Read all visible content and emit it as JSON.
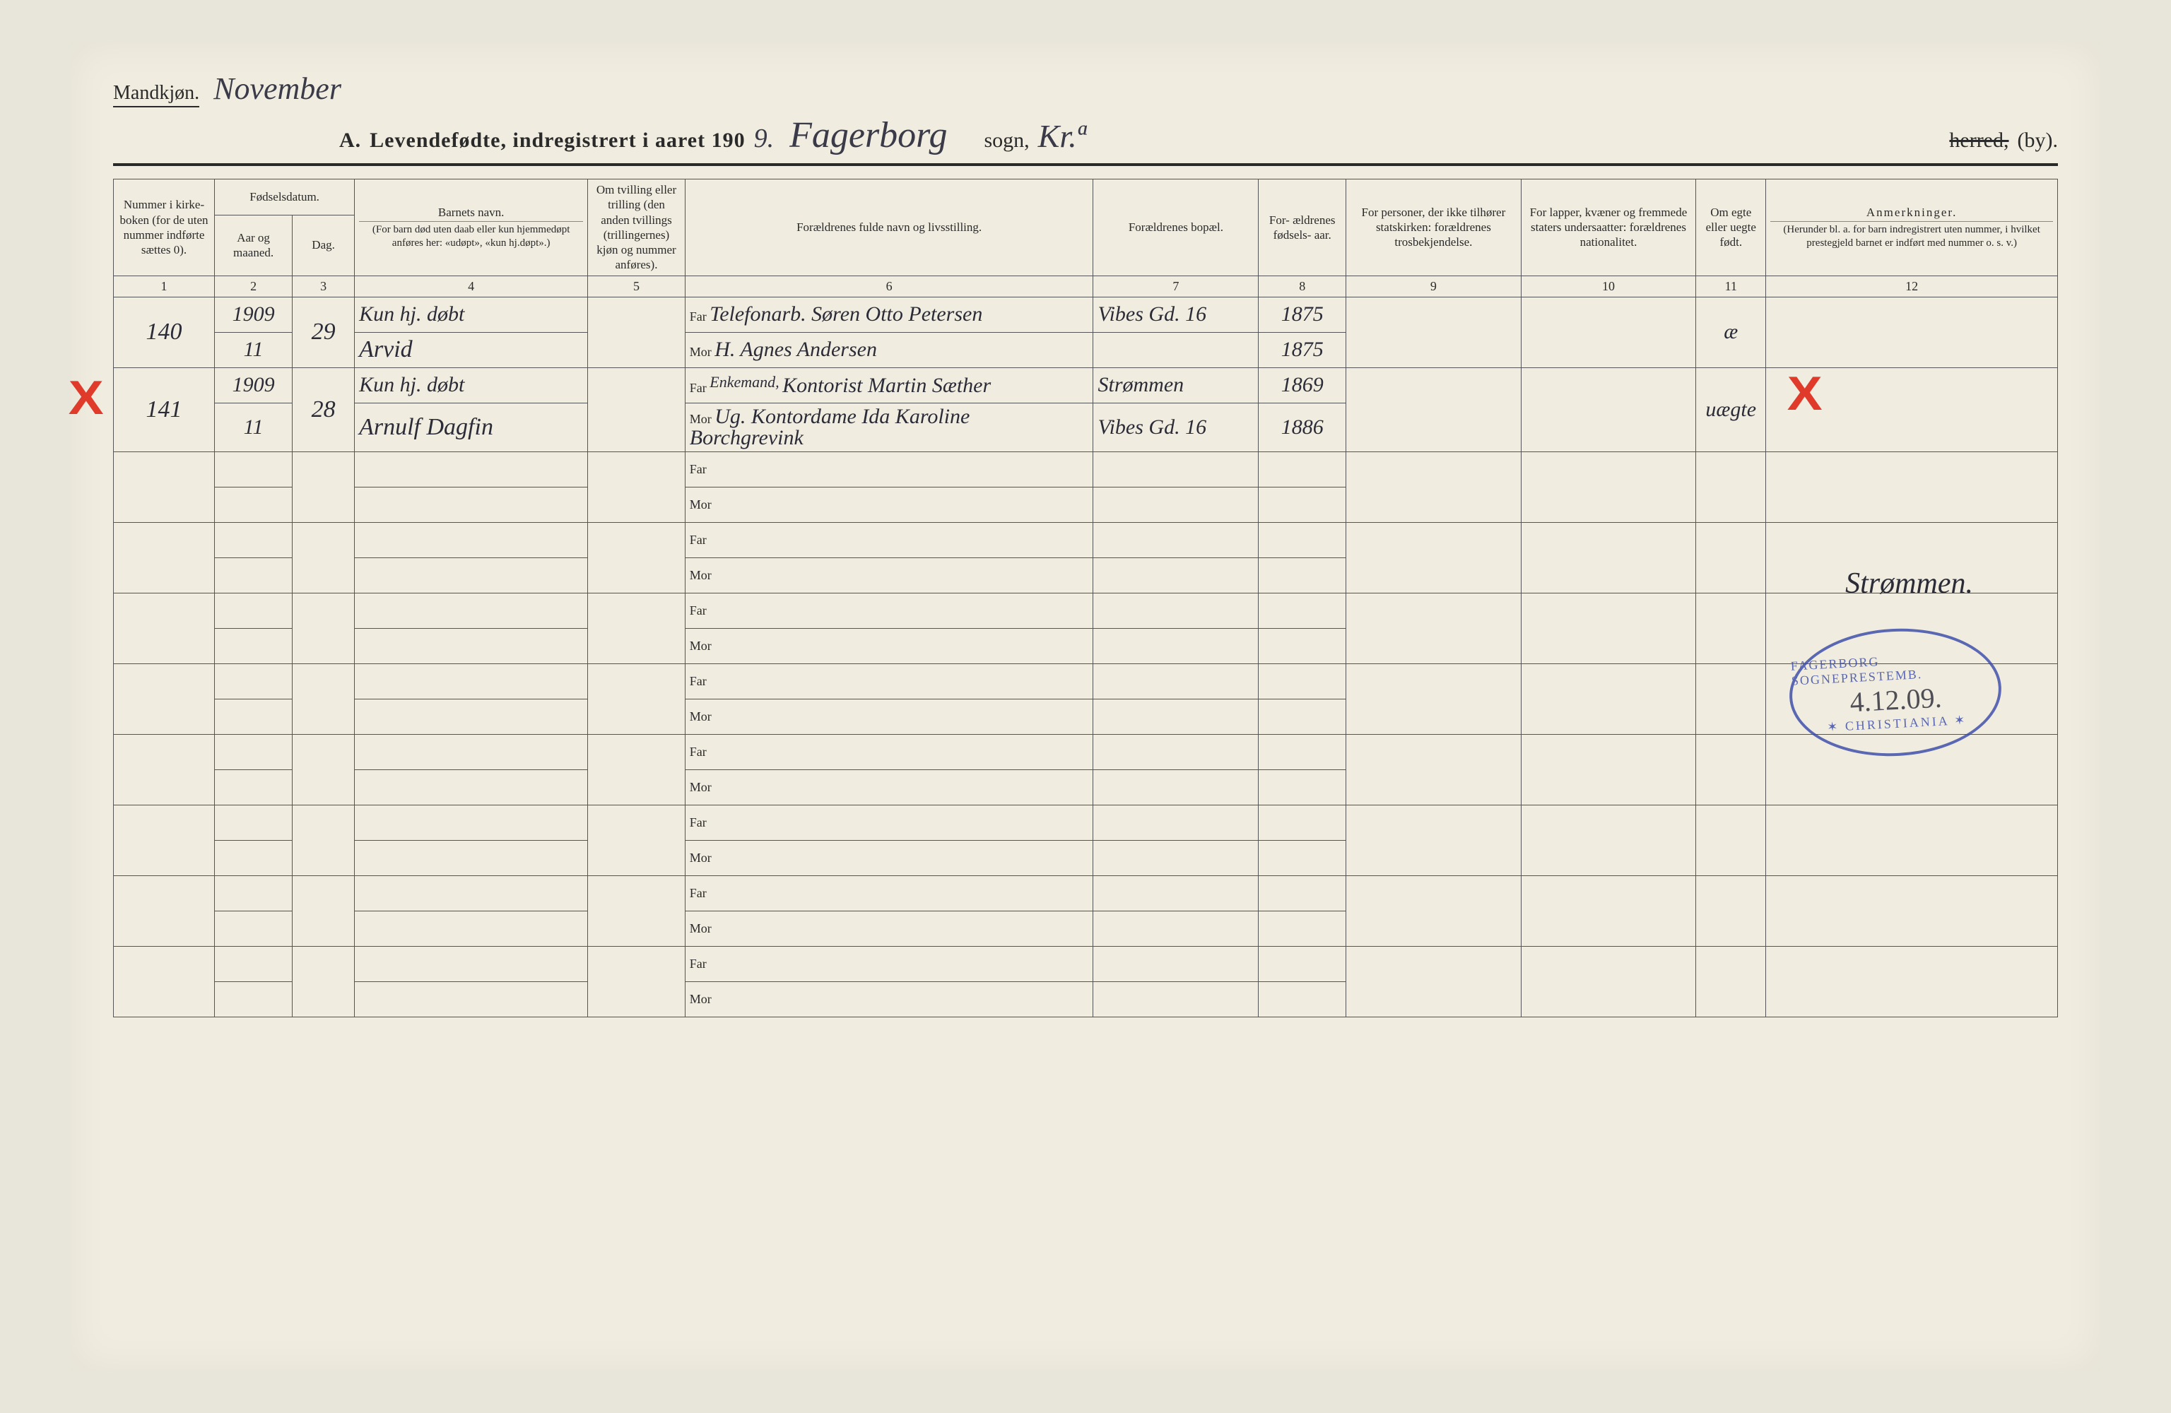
{
  "page": {
    "background_color": "#f0ede0",
    "ink_color": "#2a2a2a",
    "handwriting_color": "#2c2c38",
    "red_mark_color": "#e03a2a",
    "stamp_color": "#3a4aa8"
  },
  "header": {
    "gender_label": "Mandkjøn.",
    "month_handwritten": "November",
    "section_letter": "A.",
    "title_printed": "Levendefødte, indregistrert i aaret 190",
    "year_digit_handwritten": "9.",
    "parish_handwritten": "Fagerborg",
    "parish_label": "sogn,",
    "district_handwritten": "Kr.ª",
    "herred_struck": "herred,",
    "by_label": "(by)."
  },
  "columns": {
    "c1": "Nummer i kirke- boken (for de uten nummer indførte sættes 0).",
    "c2_group": "Fødselsdatum.",
    "c2a": "Aar og maaned.",
    "c2b": "Dag.",
    "c4": "Barnets navn.",
    "c4_sub": "(For barn død uten daab eller kun hjemmedøpt anføres her: «udøpt», «kun hj.døpt».)",
    "c5": "Om tvilling eller trilling (den anden tvillings (trillingernes) kjøn og nummer anføres).",
    "c6": "Forældrenes fulde navn og livsstilling.",
    "c7": "Forældrenes bopæl.",
    "c8": "For- ældrenes fødsels- aar.",
    "c9": "For personer, der ikke tilhører statskirken: forældrenes trosbekjendelse.",
    "c10": "For lapper, kvæner og fremmede staters undersaatter: forældrenes nationalitet.",
    "c11": "Om egte eller uegte født.",
    "c12": "Anmerkninger.",
    "c12_sub": "(Herunder bl. a. for barn indregistrert uten nummer, i hvilket prestegjeld barnet er indført med nummer o. s. v.)",
    "numbers": [
      "1",
      "2",
      "3",
      "4",
      "5",
      "6",
      "7",
      "8",
      "9",
      "10",
      "11",
      "12"
    ],
    "far_label": "Far",
    "mor_label": "Mor"
  },
  "rows": [
    {
      "num": "140",
      "year": "1909",
      "month": "11",
      "day": "29",
      "name_line1": "Kun hj. døbt",
      "name_line2": "Arvid",
      "far": "Telefonarb. Søren Otto Petersen",
      "mor": "H. Agnes Andersen",
      "far_prefix": "",
      "bopel_far": "Vibes Gd. 16",
      "bopel_mor": "",
      "aar_far": "1875",
      "aar_mor": "1875",
      "c9": "",
      "c10": "",
      "egte": "æ",
      "anm": "",
      "red_left": false,
      "red_right": false
    },
    {
      "num": "141",
      "year": "1909",
      "month": "11",
      "day": "28",
      "name_line1": "Kun hj. døbt",
      "name_line2": "Arnulf Dagfin",
      "far_prefix": "Enkemand,",
      "far": "Kontorist Martin Sæther",
      "mor": "Ug. Kontordame Ida Karoline Borchgrevink",
      "bopel_far": "Strømmen",
      "bopel_mor": "Vibes Gd. 16",
      "aar_far": "1869",
      "aar_mor": "1886",
      "c9": "",
      "c10": "",
      "egte": "uægte",
      "anm": "",
      "red_left": true,
      "red_right": true
    }
  ],
  "empty_row_count": 8,
  "signature": "Strømmen.",
  "stamp": {
    "top_arc": "FAGERBORG SOGNEPRESTEMB.",
    "date": "4.12.09.",
    "bottom_arc": "CHRISTIANIA",
    "star": "✶"
  }
}
